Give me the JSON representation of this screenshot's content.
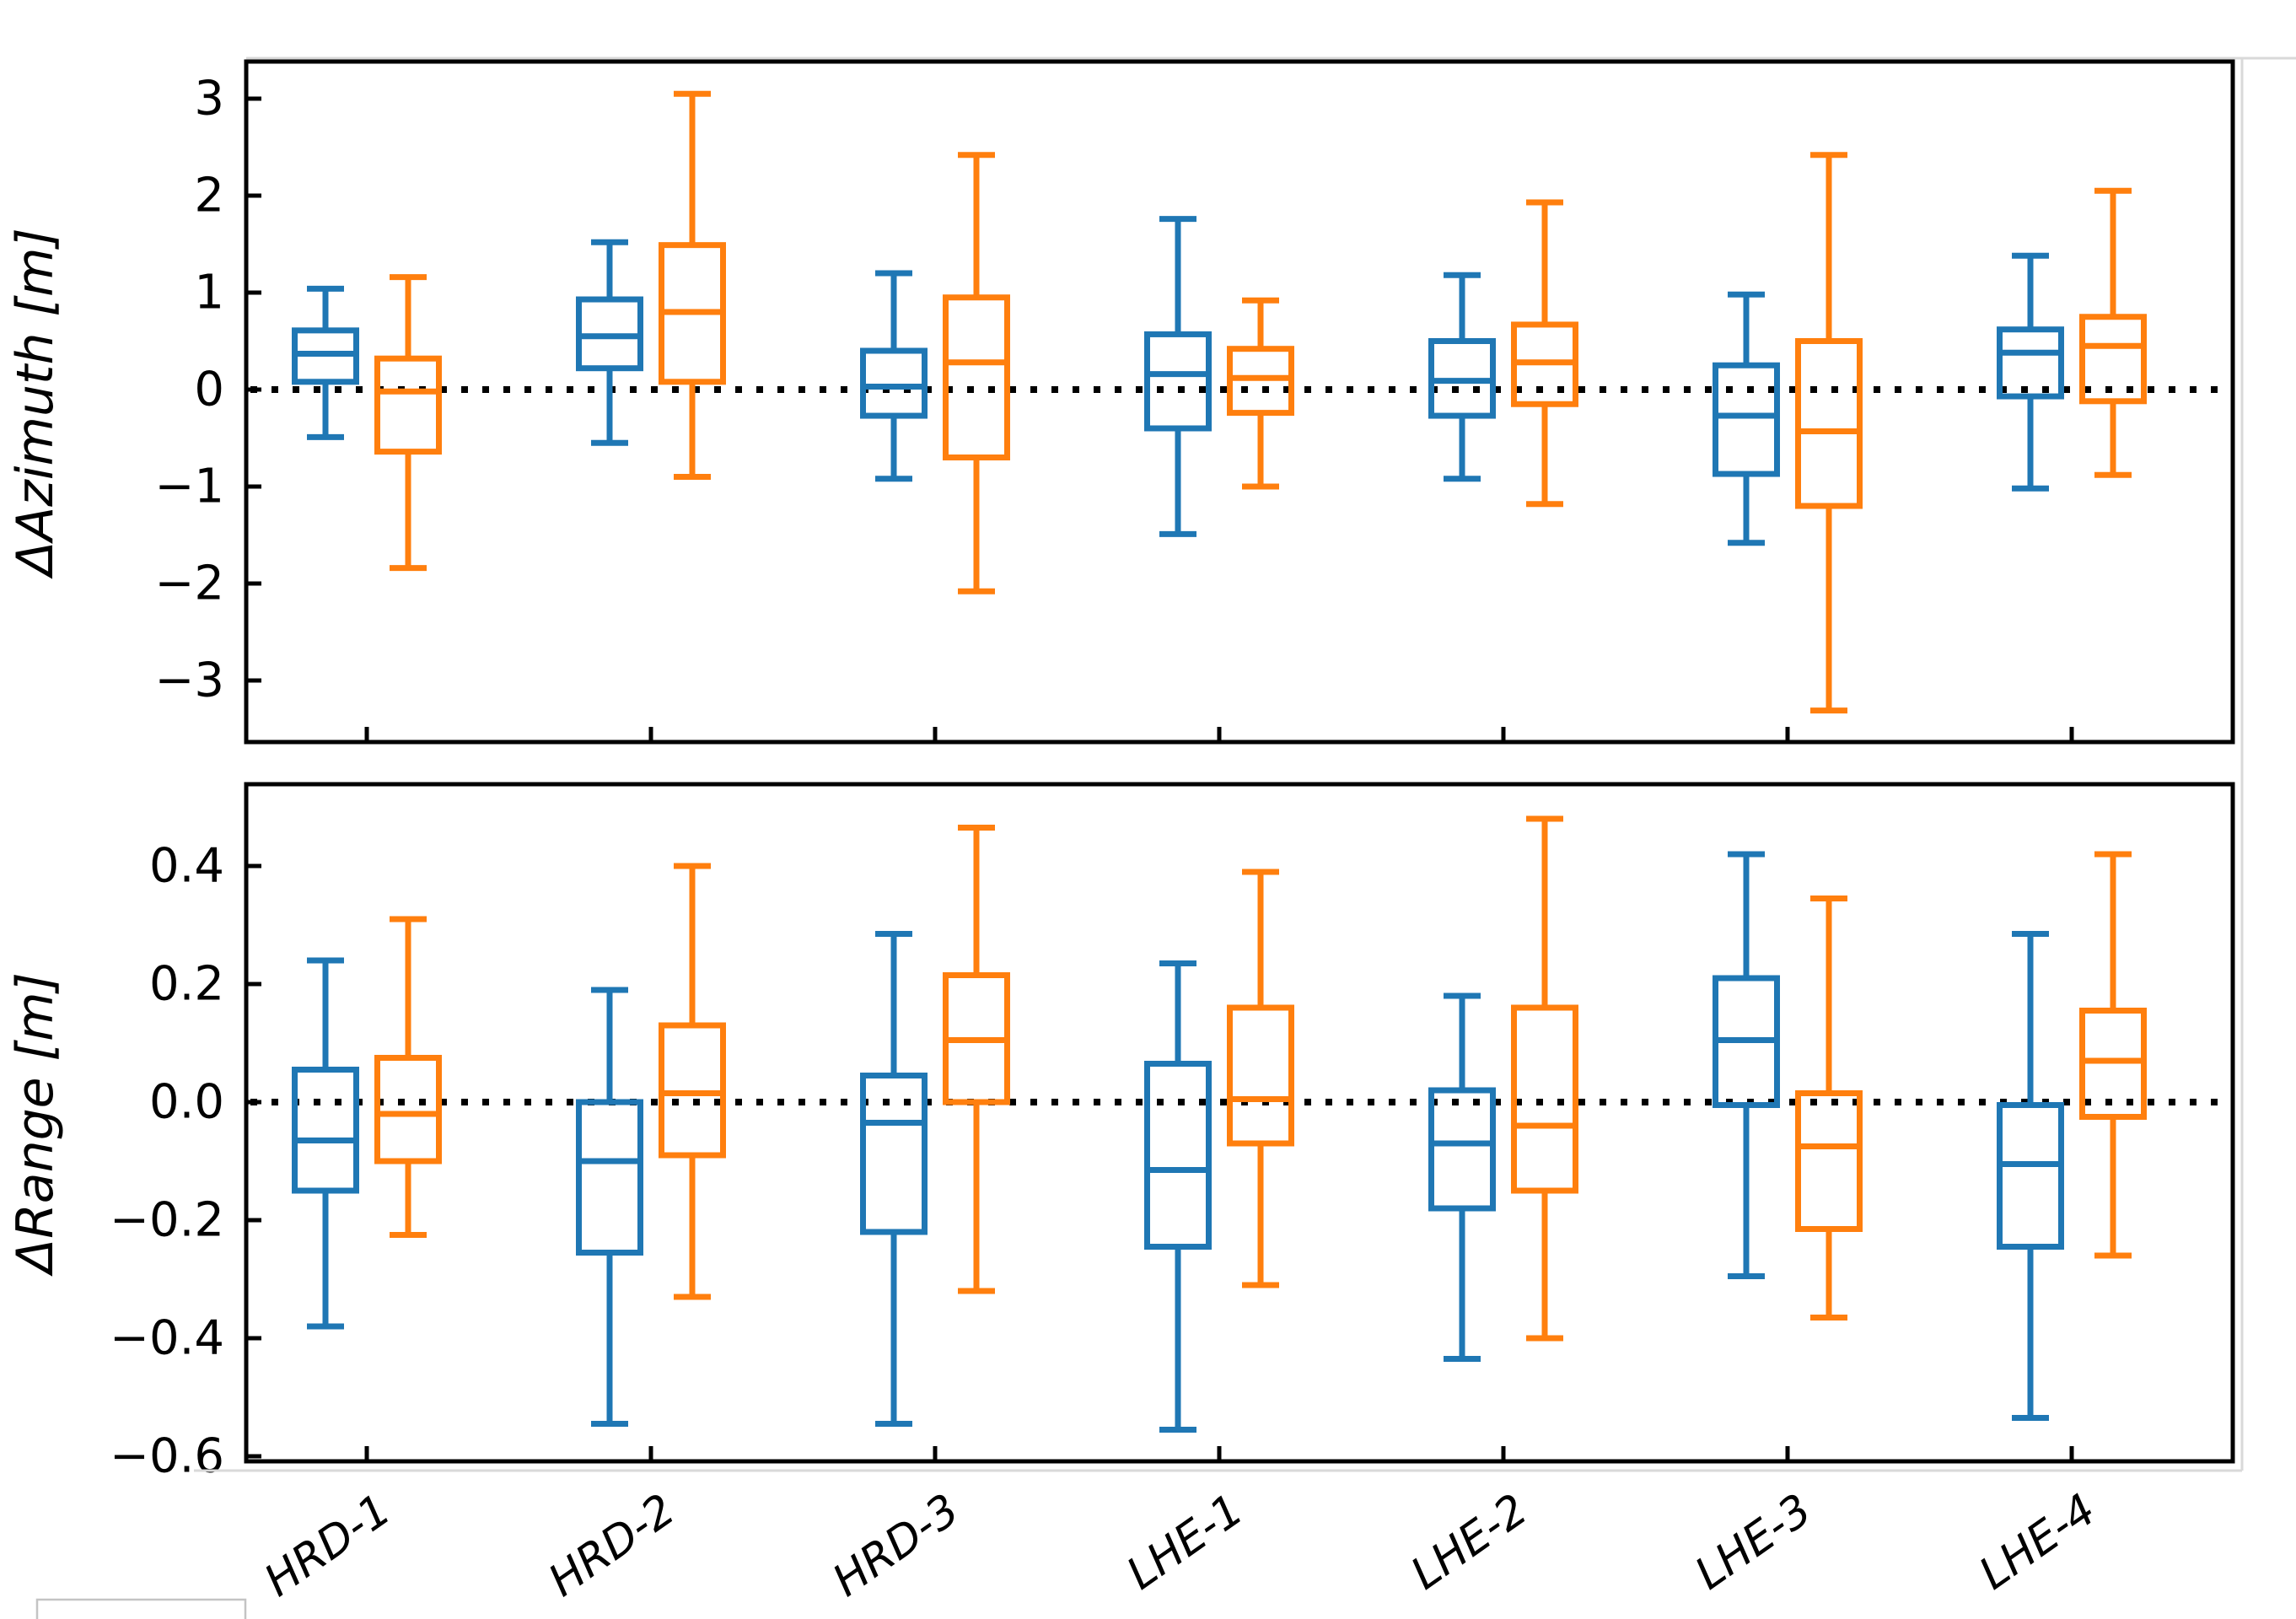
{
  "colors": {
    "series_blue": "#1f77b4",
    "series_orange": "#ff7f0e",
    "axis": "#000000",
    "zero_line": "#000000",
    "frame_shadow": "#d9d9d9",
    "corner_box_border": "#c4c4c4"
  },
  "categories": [
    "HRD-1",
    "HRD-2",
    "HRD-3",
    "LHE-1",
    "LHE-2",
    "LHE-3",
    "LHE-4"
  ],
  "chart_data": [
    {
      "type": "boxplot",
      "title": "",
      "ylabel": "ΔAzimuth [m]",
      "xlabel": "",
      "ylim": [
        -3.63,
        3.38
      ],
      "yticks": [
        3,
        2,
        1,
        0,
        -1,
        -2,
        -3
      ],
      "ytick_labels": [
        "3",
        "2",
        "1",
        "0",
        "−1",
        "−2",
        "−3"
      ],
      "grid": false,
      "zero_line_dotted": true,
      "show_x_tick_labels": false,
      "box_value_order": [
        "whisker_low",
        "q1",
        "median",
        "q3",
        "whisker_high"
      ],
      "series": [
        {
          "name": "blue",
          "color": "#1f77b4",
          "boxes": [
            [
              -0.49,
              0.08,
              0.37,
              0.61,
              1.04
            ],
            [
              -0.55,
              0.22,
              0.55,
              0.93,
              1.52
            ],
            [
              -0.92,
              -0.27,
              0.03,
              0.4,
              1.2
            ],
            [
              -1.49,
              -0.4,
              0.16,
              0.57,
              1.76
            ],
            [
              -0.92,
              -0.27,
              0.09,
              0.5,
              1.18
            ],
            [
              -1.58,
              -0.87,
              -0.27,
              0.25,
              0.98
            ],
            [
              -1.02,
              -0.07,
              0.38,
              0.62,
              1.38
            ]
          ]
        },
        {
          "name": "orange",
          "color": "#ff7f0e",
          "boxes": [
            [
              -1.84,
              -0.64,
              -0.02,
              0.32,
              1.16
            ],
            [
              -0.9,
              0.08,
              0.8,
              1.49,
              3.05
            ],
            [
              -2.08,
              -0.7,
              0.28,
              0.95,
              2.42
            ],
            [
              -1.0,
              -0.24,
              0.12,
              0.42,
              0.92
            ],
            [
              -1.18,
              -0.15,
              0.28,
              0.67,
              1.93
            ],
            [
              -3.31,
              -1.2,
              -0.43,
              0.5,
              2.42
            ],
            [
              -0.88,
              -0.12,
              0.45,
              0.75,
              2.05
            ]
          ]
        }
      ]
    },
    {
      "type": "boxplot",
      "title": "",
      "ylabel": "ΔRange [m]",
      "xlabel": "",
      "ylim": [
        -0.609,
        0.539
      ],
      "yticks": [
        0.4,
        0.2,
        0.0,
        -0.2,
        -0.4,
        -0.6
      ],
      "ytick_labels": [
        "0.4",
        "0.2",
        "0.0",
        "−0.2",
        "−0.4",
        "−0.6"
      ],
      "grid": false,
      "zero_line_dotted": true,
      "show_x_tick_labels": true,
      "box_value_order": [
        "whisker_low",
        "q1",
        "median",
        "q3",
        "whisker_high"
      ],
      "series": [
        {
          "name": "blue",
          "color": "#1f77b4",
          "boxes": [
            [
              -0.38,
              -0.15,
              -0.065,
              0.055,
              0.24
            ],
            [
              -0.545,
              -0.255,
              -0.1,
              0.0,
              0.19
            ],
            [
              -0.545,
              -0.22,
              -0.035,
              0.045,
              0.285
            ],
            [
              -0.555,
              -0.245,
              -0.115,
              0.065,
              0.235
            ],
            [
              -0.435,
              -0.18,
              -0.07,
              0.02,
              0.18
            ],
            [
              -0.295,
              -0.005,
              0.105,
              0.21,
              0.42
            ],
            [
              -0.535,
              -0.245,
              -0.105,
              -0.005,
              0.285
            ]
          ]
        },
        {
          "name": "orange",
          "color": "#ff7f0e",
          "boxes": [
            [
              -0.225,
              -0.1,
              -0.02,
              0.075,
              0.31
            ],
            [
              -0.33,
              -0.09,
              0.015,
              0.13,
              0.4
            ],
            [
              -0.32,
              0.0,
              0.105,
              0.215,
              0.465
            ],
            [
              -0.31,
              -0.07,
              0.005,
              0.16,
              0.39
            ],
            [
              -0.4,
              -0.15,
              -0.04,
              0.16,
              0.48
            ],
            [
              -0.365,
              -0.215,
              -0.075,
              0.015,
              0.345
            ],
            [
              -0.26,
              -0.025,
              0.07,
              0.155,
              0.42
            ]
          ]
        }
      ]
    }
  ],
  "decorations": {
    "partial_corner_box_bottom_left": true
  }
}
